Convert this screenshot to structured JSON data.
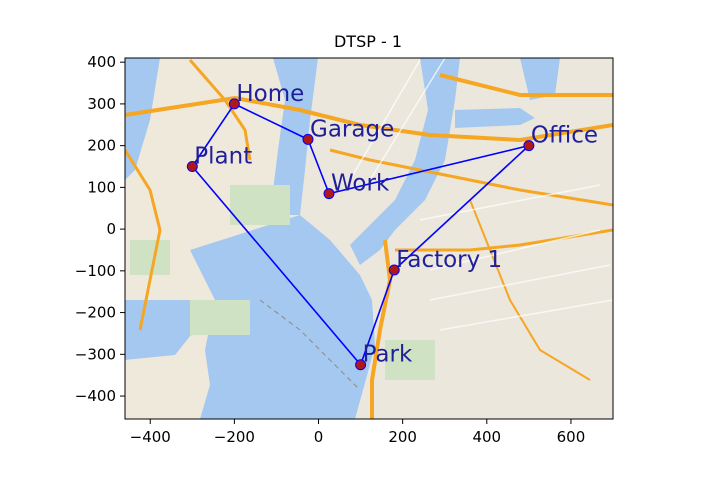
{
  "chart_data": {
    "type": "scatter",
    "title": "DTSP - 1",
    "xlabel": "",
    "ylabel": "",
    "xlim": [
      -460,
      700
    ],
    "ylim": [
      -455,
      410
    ],
    "x_ticks": [
      -400,
      -200,
      0,
      200,
      400,
      600
    ],
    "y_ticks": [
      400,
      300,
      200,
      100,
      0,
      -100,
      -200,
      -300,
      -400
    ],
    "x_tick_labels": [
      "−400",
      "−200",
      "0",
      "200",
      "400",
      "600"
    ],
    "y_tick_labels": [
      "400",
      "300",
      "200",
      "100",
      "0",
      "−100",
      "−200",
      "−300",
      "−400"
    ],
    "points": [
      {
        "label": "Home",
        "x": -200,
        "y": 300
      },
      {
        "label": "Garage",
        "x": -25,
        "y": 215
      },
      {
        "label": "Work",
        "x": 25,
        "y": 85
      },
      {
        "label": "Office",
        "x": 500,
        "y": 200
      },
      {
        "label": "Factory 1",
        "x": 180,
        "y": -98
      },
      {
        "label": "Park",
        "x": 100,
        "y": -325
      },
      {
        "label": "Plant",
        "x": -300,
        "y": 150
      }
    ],
    "route": [
      "Home",
      "Garage",
      "Work",
      "Office",
      "Factory 1",
      "Park",
      "Plant",
      "Home"
    ],
    "colors": {
      "route": "#0000ff",
      "marker": "#b01818",
      "label": "#1f1f9a"
    },
    "background": "street map of Manhattan, Brooklyn and Jersey City"
  }
}
